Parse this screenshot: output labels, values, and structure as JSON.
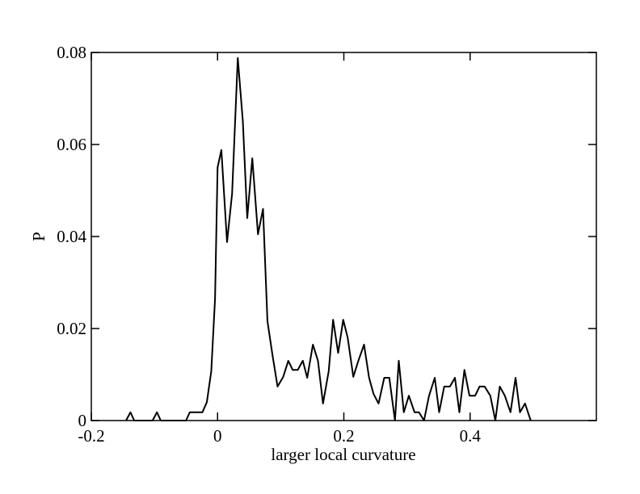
{
  "chart_data": {
    "type": "line",
    "xlabel": "larger local curvature",
    "ylabel": "P",
    "x": [
      -0.145,
      -0.138,
      -0.132,
      -0.103,
      -0.096,
      -0.09,
      -0.05,
      -0.044,
      -0.024,
      -0.017,
      -0.01,
      -0.004,
      0,
      0.006,
      0.015,
      0.023,
      0.032,
      0.04,
      0.047,
      0.055,
      0.064,
      0.072,
      0.079,
      0.087,
      0.095,
      0.104,
      0.112,
      0.119,
      0.127,
      0.135,
      0.142,
      0.151,
      0.159,
      0.167,
      0.176,
      0.183,
      0.191,
      0.199,
      0.206,
      0.215,
      0.223,
      0.232,
      0.24,
      0.247,
      0.255,
      0.264,
      0.272,
      0.281,
      0.287,
      0.295,
      0.303,
      0.312,
      0.319,
      0.327,
      0.335,
      0.344,
      0.351,
      0.359,
      0.368,
      0.376,
      0.383,
      0.391,
      0.399,
      0.408,
      0.415,
      0.423,
      0.432,
      0.44,
      0.447,
      0.455,
      0.464,
      0.472,
      0.479,
      0.487,
      0.496
    ],
    "series": [
      {
        "color": "#000000",
        "values": [
          0,
          0.0018,
          0,
          0,
          0.0018,
          0,
          0,
          0.0018,
          0.0018,
          0.004,
          0.0107,
          0.0265,
          0.055,
          0.0588,
          0.0388,
          0.0493,
          0.0788,
          0.0651,
          0.044,
          0.057,
          0.0405,
          0.046,
          0.0216,
          0.0142,
          0.0074,
          0.0095,
          0.013,
          0.011,
          0.011,
          0.013,
          0.0093,
          0.0165,
          0.013,
          0.0037,
          0.0107,
          0.0219,
          0.0147,
          0.0219,
          0.0181,
          0.0095,
          0.013,
          0.0165,
          0.0093,
          0.0058,
          0.0037,
          0.0093,
          0.0093,
          0,
          0.013,
          0.0018,
          0.0054,
          0.0018,
          0.0018,
          0,
          0.0054,
          0.0093,
          0.0018,
          0.0074,
          0.0074,
          0.0093,
          0.0018,
          0.011,
          0.0054,
          0.0054,
          0.0074,
          0.0074,
          0.0054,
          0,
          0.0074,
          0.0054,
          0.0018,
          0.0093,
          0.0018,
          0.0037,
          0
        ]
      }
    ],
    "xlim": [
      -0.2,
      0.6
    ],
    "ylim": [
      0,
      0.08
    ],
    "xticks": [
      -0.2,
      0,
      0.2,
      0.4
    ],
    "yticks": [
      0,
      0.02,
      0.04,
      0.06,
      0.08
    ]
  }
}
